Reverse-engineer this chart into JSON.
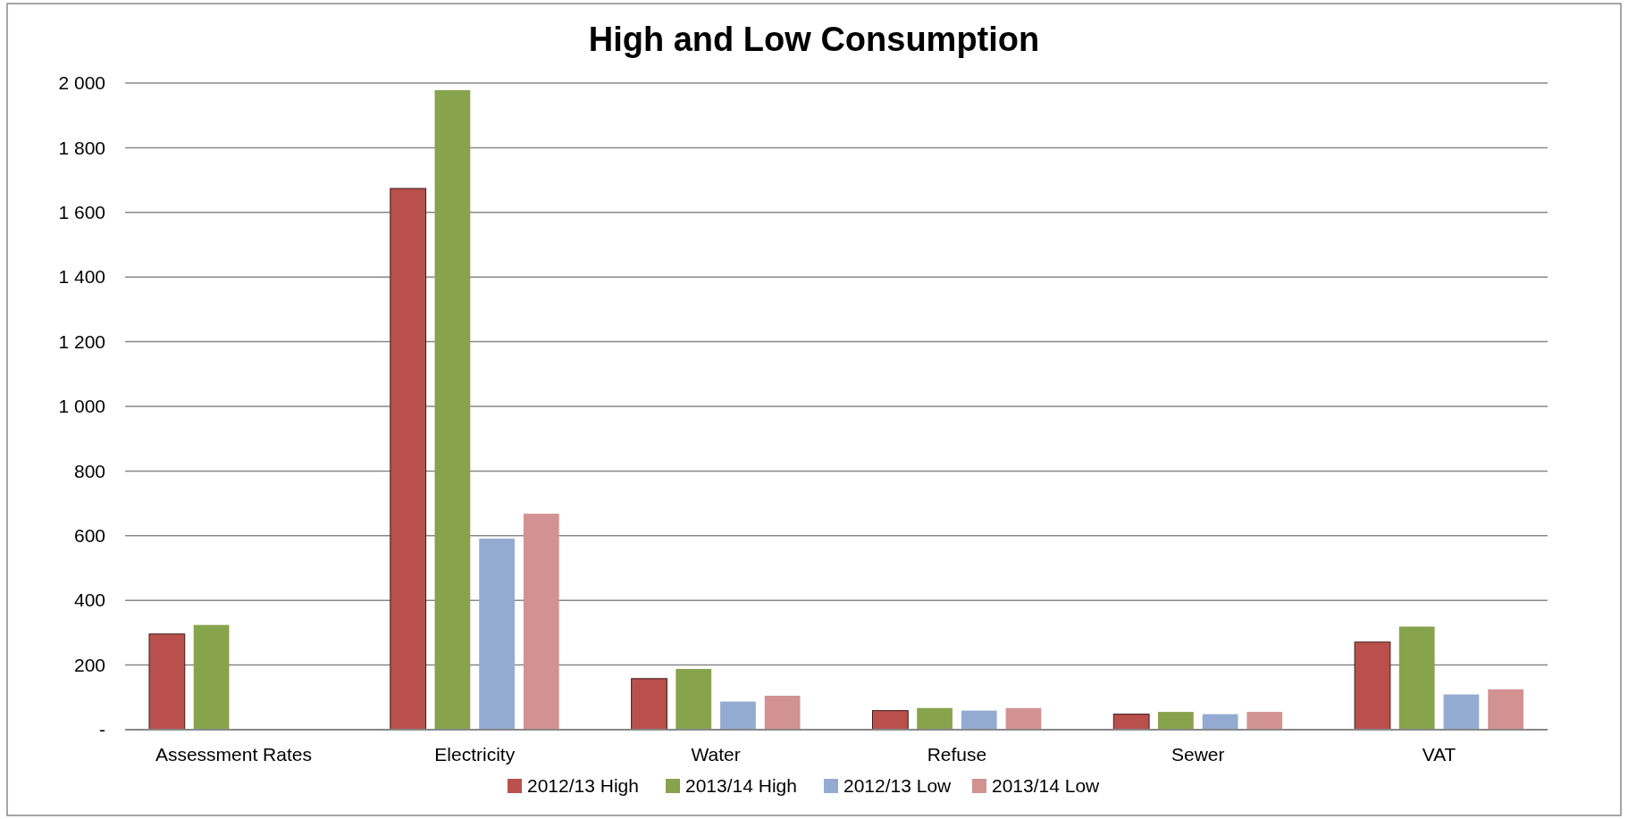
{
  "chart_data": {
    "type": "bar",
    "title": "High and Low Consumption",
    "categories": [
      "Assessment Rates",
      "Electricity",
      "Water",
      "Refuse",
      "Sewer",
      "VAT"
    ],
    "series": [
      {
        "name": "2012/13 High",
        "color": "#b9504c",
        "values": [
          296,
          1674,
          158,
          59,
          48,
          271
        ]
      },
      {
        "name": "2013/14 High",
        "color": "#87a44d",
        "values": [
          324,
          1978,
          188,
          67,
          55,
          319
        ]
      },
      {
        "name": "2012/13 Low",
        "color": "#93abd1",
        "values": [
          null,
          591,
          87,
          59,
          48,
          109
        ]
      },
      {
        "name": "2013/14 Low",
        "color": "#d39292",
        "values": [
          null,
          668,
          105,
          67,
          55,
          125
        ]
      }
    ],
    "ylim": [
      0,
      2000
    ],
    "yticks": [
      {
        "value": 0,
        "label": "-"
      },
      {
        "value": 200,
        "label": "200"
      },
      {
        "value": 400,
        "label": "400"
      },
      {
        "value": 600,
        "label": "600"
      },
      {
        "value": 800,
        "label": "800"
      },
      {
        "value": 1000,
        "label": "1 000"
      },
      {
        "value": 1200,
        "label": "1 200"
      },
      {
        "value": 1400,
        "label": "1 400"
      },
      {
        "value": 1600,
        "label": "1 600"
      },
      {
        "value": 1800,
        "label": "1 800"
      },
      {
        "value": 2000,
        "label": "2 000"
      }
    ],
    "grid": "y",
    "legend": "bottom"
  }
}
